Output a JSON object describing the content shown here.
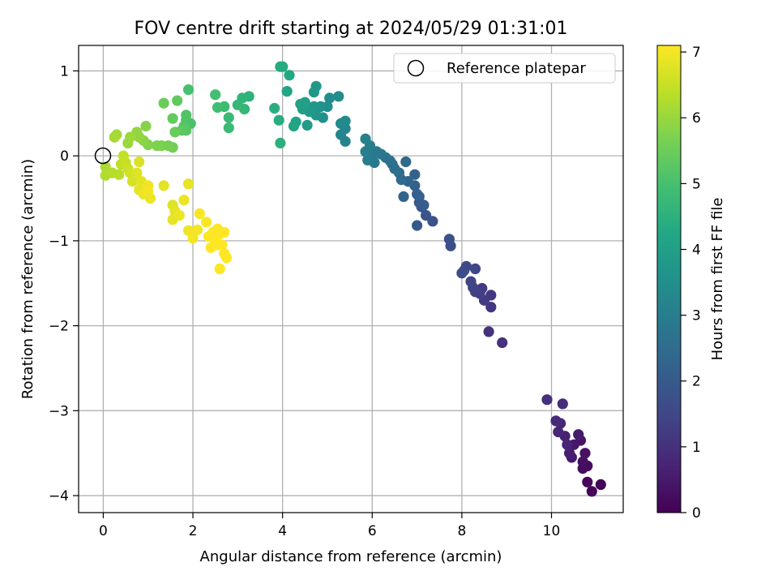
{
  "chart_data": {
    "type": "scatter",
    "title": "FOV centre drift starting at 2024/05/29 01:31:01",
    "xlabel": "Angular distance from reference (arcmin)",
    "ylabel": "Rotation from reference (arcmin)",
    "xlim": [
      -0.55,
      11.6
    ],
    "ylim": [
      -4.2,
      1.3
    ],
    "xticks": [
      0,
      2,
      4,
      6,
      8,
      10
    ],
    "yticks": [
      1,
      0,
      -1,
      -2,
      -3,
      -4
    ],
    "xtick_labels": [
      "0",
      "2",
      "4",
      "6",
      "8",
      "10"
    ],
    "ytick_labels": [
      "1",
      "0",
      "−1",
      "−2",
      "−3",
      "−4"
    ],
    "grid": true,
    "legend": {
      "placement": "top-right",
      "label": "Reference platepar"
    },
    "reference_point": {
      "x": 0,
      "y": 0
    },
    "colorbar": {
      "label": "Hours from first FF file",
      "colormap": "viridis",
      "range": [
        0,
        7.1
      ],
      "ticks": [
        0,
        1,
        2,
        3,
        4,
        5,
        6,
        7
      ],
      "tick_labels": [
        "0",
        "1",
        "2",
        "3",
        "4",
        "5",
        "6",
        "7"
      ]
    },
    "points": [
      [
        11.1,
        -3.87,
        0.05
      ],
      [
        10.9,
        -3.95,
        0.1
      ],
      [
        10.8,
        -3.84,
        0.15
      ],
      [
        10.8,
        -3.65,
        0.2
      ],
      [
        10.7,
        -3.68,
        0.25
      ],
      [
        10.7,
        -3.6,
        0.3
      ],
      [
        10.75,
        -3.5,
        0.35
      ],
      [
        10.65,
        -3.35,
        0.4
      ],
      [
        10.5,
        -3.4,
        0.45
      ],
      [
        10.6,
        -3.28,
        0.5
      ],
      [
        10.45,
        -3.55,
        0.55
      ],
      [
        10.4,
        -3.5,
        0.6
      ],
      [
        10.3,
        -3.3,
        0.65
      ],
      [
        10.35,
        -3.4,
        0.7
      ],
      [
        10.2,
        -3.15,
        0.75
      ],
      [
        10.15,
        -3.25,
        0.8
      ],
      [
        10.1,
        -3.12,
        0.85
      ],
      [
        10.25,
        -2.92,
        0.9
      ],
      [
        9.9,
        -2.87,
        0.95
      ],
      [
        8.9,
        -2.2,
        1.0
      ],
      [
        8.6,
        -2.07,
        1.05
      ],
      [
        8.65,
        -1.78,
        1.1
      ],
      [
        8.65,
        -1.64,
        1.15
      ],
      [
        8.5,
        -1.7,
        1.2
      ],
      [
        8.45,
        -1.56,
        1.25
      ],
      [
        8.4,
        -1.62,
        1.3
      ],
      [
        8.3,
        -1.6,
        1.35
      ],
      [
        8.25,
        -1.55,
        1.4
      ],
      [
        8.2,
        -1.48,
        1.45
      ],
      [
        8.3,
        -1.33,
        1.5
      ],
      [
        8.1,
        -1.3,
        1.55
      ],
      [
        8.05,
        -1.35,
        1.6
      ],
      [
        8.0,
        -1.38,
        1.65
      ],
      [
        7.75,
        -1.06,
        1.7
      ],
      [
        7.72,
        -0.98,
        1.75
      ],
      [
        7.35,
        -0.77,
        1.8
      ],
      [
        7.2,
        -0.7,
        1.85
      ],
      [
        7.1,
        -0.6,
        1.9
      ],
      [
        7.0,
        -0.82,
        1.95
      ],
      [
        7.05,
        -0.55,
        2.0
      ],
      [
        7.15,
        -0.58,
        2.05
      ],
      [
        7.0,
        -0.45,
        2.1
      ],
      [
        6.95,
        -0.35,
        2.15
      ],
      [
        7.05,
        -0.48,
        2.2
      ],
      [
        6.95,
        -0.22,
        2.25
      ],
      [
        6.7,
        -0.48,
        2.3
      ],
      [
        6.8,
        -0.3,
        2.35
      ],
      [
        6.75,
        -0.07,
        2.4
      ],
      [
        6.65,
        -0.28,
        2.45
      ],
      [
        6.6,
        -0.2,
        2.5
      ],
      [
        6.5,
        -0.15,
        2.55
      ],
      [
        6.45,
        -0.1,
        2.6
      ],
      [
        6.4,
        -0.06,
        2.65
      ],
      [
        6.3,
        -0.02,
        2.7
      ],
      [
        6.2,
        0.02,
        2.75
      ],
      [
        6.1,
        0.05,
        2.8
      ],
      [
        6.05,
        -0.08,
        2.85
      ],
      [
        6.0,
        0.0,
        2.9
      ],
      [
        5.9,
        -0.05,
        2.95
      ],
      [
        5.85,
        0.05,
        3.0
      ],
      [
        5.95,
        0.12,
        3.05
      ],
      [
        5.85,
        0.2,
        3.1
      ],
      [
        5.4,
        0.17,
        3.15
      ],
      [
        5.4,
        0.32,
        3.2
      ],
      [
        5.3,
        0.25,
        3.25
      ],
      [
        5.3,
        0.38,
        3.3
      ],
      [
        5.4,
        0.41,
        3.35
      ],
      [
        5.25,
        0.7,
        3.4
      ],
      [
        5.05,
        0.68,
        3.45
      ],
      [
        5.0,
        0.58,
        3.5
      ],
      [
        4.9,
        0.45,
        3.55
      ],
      [
        4.85,
        0.58,
        3.6
      ],
      [
        4.75,
        0.48,
        3.65
      ],
      [
        4.7,
        0.58,
        3.7
      ],
      [
        4.7,
        0.75,
        3.75
      ],
      [
        4.75,
        0.82,
        3.8
      ],
      [
        4.6,
        0.52,
        3.85
      ],
      [
        4.55,
        0.36,
        3.9
      ],
      [
        4.45,
        0.55,
        3.95
      ],
      [
        4.5,
        0.63,
        4.0
      ],
      [
        4.4,
        0.61,
        4.05
      ],
      [
        4.3,
        0.4,
        4.1
      ],
      [
        4.25,
        0.35,
        4.15
      ],
      [
        4.1,
        0.76,
        4.2
      ],
      [
        4.15,
        0.95,
        4.25
      ],
      [
        4.0,
        1.05,
        4.3
      ],
      [
        3.95,
        1.05,
        4.35
      ],
      [
        3.92,
        0.42,
        4.4
      ],
      [
        3.82,
        0.56,
        4.45
      ],
      [
        3.95,
        0.15,
        4.5
      ],
      [
        3.25,
        0.7,
        4.55
      ],
      [
        3.1,
        0.68,
        4.6
      ],
      [
        3.15,
        0.55,
        4.65
      ],
      [
        3.0,
        0.6,
        4.7
      ],
      [
        2.8,
        0.45,
        4.75
      ],
      [
        2.8,
        0.33,
        4.8
      ],
      [
        2.7,
        0.58,
        4.85
      ],
      [
        2.55,
        0.57,
        4.9
      ],
      [
        2.5,
        0.72,
        4.95
      ],
      [
        1.9,
        0.78,
        5.0
      ],
      [
        1.95,
        0.38,
        5.05
      ],
      [
        1.85,
        0.42,
        5.1
      ],
      [
        1.85,
        0.48,
        5.15
      ],
      [
        1.8,
        0.35,
        5.2
      ],
      [
        1.85,
        0.3,
        5.25
      ],
      [
        1.75,
        0.3,
        5.3
      ],
      [
        1.65,
        0.65,
        5.35
      ],
      [
        1.55,
        0.44,
        5.4
      ],
      [
        1.6,
        0.28,
        5.45
      ],
      [
        1.35,
        0.62,
        5.5
      ],
      [
        1.55,
        0.1,
        5.55
      ],
      [
        1.45,
        0.12,
        5.6
      ],
      [
        1.3,
        0.12,
        5.65
      ],
      [
        1.2,
        0.12,
        5.7
      ],
      [
        1.0,
        0.13,
        5.75
      ],
      [
        0.95,
        0.35,
        5.8
      ],
      [
        0.9,
        0.18,
        5.85
      ],
      [
        0.8,
        0.22,
        5.9
      ],
      [
        0.75,
        0.28,
        5.95
      ],
      [
        0.55,
        0.15,
        6.0
      ],
      [
        0.6,
        0.22,
        6.05
      ],
      [
        0.3,
        0.25,
        6.1
      ],
      [
        0.25,
        0.22,
        6.15
      ],
      [
        0.05,
        -0.13,
        6.2
      ],
      [
        0.05,
        -0.23,
        6.25
      ],
      [
        0.2,
        -0.2,
        6.3
      ],
      [
        0.35,
        -0.22,
        6.35
      ],
      [
        0.4,
        -0.1,
        6.4
      ],
      [
        0.45,
        0.0,
        6.45
      ],
      [
        0.5,
        -0.08,
        6.5
      ],
      [
        0.55,
        -0.15,
        6.55
      ],
      [
        0.6,
        -0.2,
        6.6
      ],
      [
        0.65,
        -0.3,
        6.65
      ],
      [
        0.8,
        -0.07,
        6.7
      ],
      [
        0.75,
        -0.2,
        6.75
      ],
      [
        0.85,
        -0.3,
        6.8
      ],
      [
        0.8,
        -0.4,
        6.85
      ],
      [
        0.9,
        -0.45,
        6.9
      ],
      [
        1.0,
        -0.35,
        6.95
      ],
      [
        1.0,
        -0.42,
        7.0
      ],
      [
        1.05,
        -0.5,
        6.9
      ],
      [
        1.35,
        -0.35,
        6.8
      ],
      [
        1.55,
        -0.58,
        6.75
      ],
      [
        1.6,
        -0.65,
        6.8
      ],
      [
        1.55,
        -0.75,
        6.85
      ],
      [
        1.7,
        -0.7,
        6.9
      ],
      [
        1.8,
        -0.52,
        6.9
      ],
      [
        1.9,
        -0.33,
        6.85
      ],
      [
        1.9,
        -0.88,
        6.95
      ],
      [
        2.1,
        -0.87,
        7.0
      ],
      [
        2.0,
        -0.97,
        7.0
      ],
      [
        2.15,
        -0.68,
        7.05
      ],
      [
        2.3,
        -0.78,
        7.05
      ],
      [
        2.35,
        -0.95,
        7.1
      ],
      [
        2.4,
        -1.08,
        7.1
      ],
      [
        2.45,
        -0.9,
        7.1
      ],
      [
        2.5,
        -1.0,
        7.1
      ],
      [
        2.55,
        -1.05,
        7.1
      ],
      [
        2.6,
        -0.92,
        7.1
      ],
      [
        2.7,
        -0.9,
        7.1
      ],
      [
        2.65,
        -1.05,
        7.1
      ],
      [
        2.7,
        -1.15,
        7.1
      ],
      [
        2.75,
        -1.2,
        7.1
      ],
      [
        2.6,
        -1.33,
        7.1
      ],
      [
        2.55,
        -0.86,
        7.1
      ]
    ]
  }
}
